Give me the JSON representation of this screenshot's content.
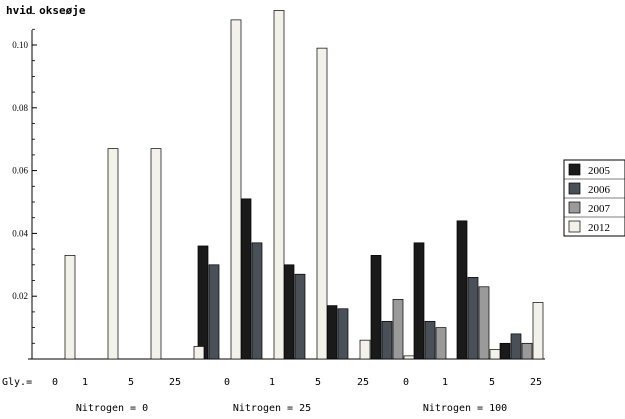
{
  "chart_data": {
    "type": "bar",
    "title": "hvid okseøje",
    "ylim": [
      0,
      0.115
    ],
    "y_ticks": [
      0.02,
      0.04,
      0.06,
      0.08,
      0.1
    ],
    "y_tick_labels": [
      "0.02",
      "0.04",
      "0.06",
      "0.08",
      "0.10"
    ],
    "gly_prefix": "Gly.=",
    "groups": [
      {
        "label": "Nitrogen = 0",
        "categories": [
          "0",
          "1",
          "5",
          "25"
        ]
      },
      {
        "label": "Nitrogen = 25",
        "categories": [
          "0",
          "1",
          "5",
          "25"
        ]
      },
      {
        "label": "Nitrogen = 100",
        "categories": [
          "0",
          "1",
          "5",
          "25"
        ]
      }
    ],
    "series": [
      {
        "name": "2005",
        "color": "#1a1a1a",
        "values": [
          0,
          0,
          0,
          0,
          0.036,
          0.051,
          0.03,
          0.017,
          0.033,
          0.037,
          0.044,
          0.005
        ]
      },
      {
        "name": "2006",
        "color": "#4a5058",
        "values": [
          0,
          0,
          0,
          0,
          0.03,
          0.037,
          0.027,
          0.016,
          0.012,
          0.012,
          0.026,
          0.008
        ]
      },
      {
        "name": "2007",
        "color": "#9a9a9a",
        "values": [
          0,
          0,
          0,
          0,
          0,
          0,
          0,
          0,
          0.019,
          0.01,
          0.023,
          0.005
        ]
      },
      {
        "name": "2012",
        "color": "#f2f2ea",
        "values": [
          0.033,
          0.067,
          0.067,
          0.004,
          0.108,
          0.111,
          0.099,
          0.006,
          0.001,
          0,
          0.003,
          0.018
        ]
      }
    ],
    "legend": "right"
  }
}
